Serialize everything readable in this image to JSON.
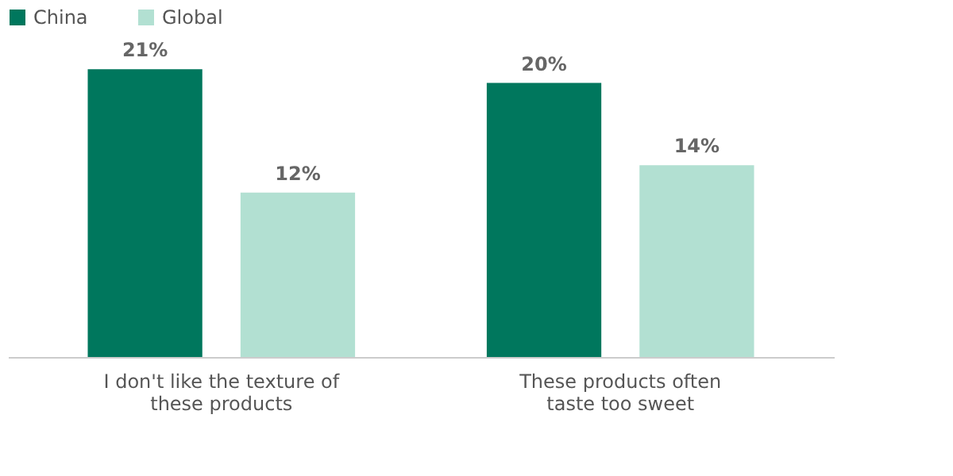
{
  "chart_data": {
    "type": "bar",
    "categories": [
      "I don't like the texture of\nthese products",
      "These products often\ntaste too sweet"
    ],
    "series": [
      {
        "name": "China",
        "color": "#00775d",
        "values": [
          21,
          20
        ],
        "value_labels": [
          "21%",
          "20%"
        ]
      },
      {
        "name": "Global",
        "color": "#b2e0d2",
        "values": [
          12,
          14
        ],
        "value_labels": [
          "12%",
          "14%"
        ]
      }
    ],
    "legend": "top",
    "grid": false,
    "tick_labels": "x"
  }
}
